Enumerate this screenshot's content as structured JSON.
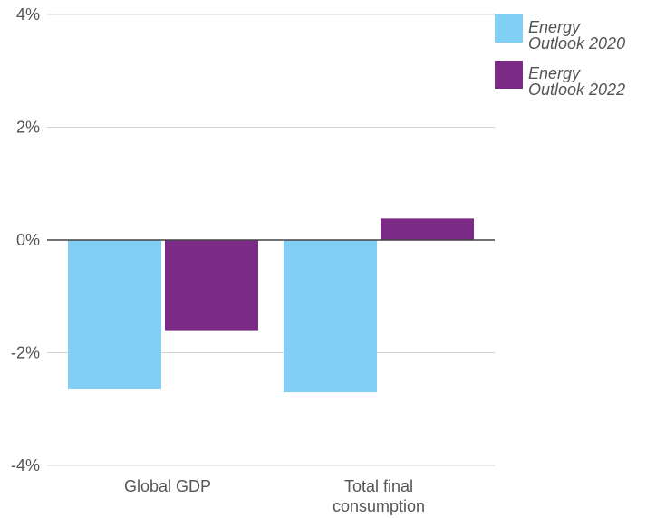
{
  "chart_data": {
    "type": "bar",
    "title": "",
    "xlabel": "",
    "ylabel": "",
    "categories": [
      [
        "Global GDP"
      ],
      [
        "Total final",
        "consumption"
      ]
    ],
    "series": [
      {
        "name": [
          "Energy",
          "Outlook 2020"
        ],
        "values": [
          -2.65,
          -2.7
        ],
        "color": "#81cff4"
      },
      {
        "name": [
          "Energy",
          "Outlook 2022"
        ],
        "values": [
          -1.6,
          0.38
        ],
        "color": "#7b2a86"
      }
    ],
    "ylim": [
      -4,
      4
    ],
    "yticks": [
      4,
      2,
      0,
      -2,
      -4
    ],
    "ytick_labels": [
      "4%",
      "2%",
      "0%",
      "-2%",
      "-4%"
    ],
    "grid": true,
    "legend_position": "top-right"
  }
}
